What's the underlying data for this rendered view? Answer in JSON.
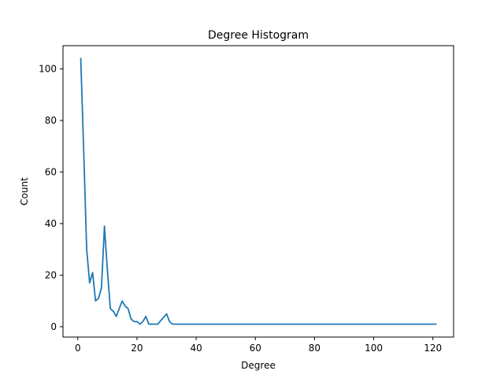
{
  "chart_data": {
    "type": "line",
    "title": "Degree Histogram",
    "xlabel": "Degree",
    "ylabel": "Count",
    "xlim": [
      -5,
      127
    ],
    "ylim": [
      -4,
      109
    ],
    "xticks": [
      0,
      20,
      40,
      60,
      80,
      100,
      120
    ],
    "yticks": [
      0,
      20,
      40,
      60,
      80,
      100
    ],
    "grid": false,
    "series": [
      {
        "color": "#1f77b4",
        "x": [
          1,
          2,
          3,
          4,
          5,
          6,
          7,
          8,
          9,
          10,
          11,
          12,
          13,
          14,
          15,
          16,
          17,
          18,
          19,
          20,
          21,
          22,
          23,
          24,
          25,
          27,
          30,
          31,
          32,
          34,
          35,
          80,
          34,
          121
        ],
        "y": [
          104,
          68,
          30,
          17,
          21,
          10,
          11,
          15,
          39,
          22,
          7,
          6,
          4,
          7,
          10,
          8,
          7,
          3,
          2,
          2,
          1,
          2,
          4,
          1,
          1,
          1,
          5,
          2,
          1,
          1,
          1,
          1,
          1,
          1
        ]
      }
    ]
  }
}
